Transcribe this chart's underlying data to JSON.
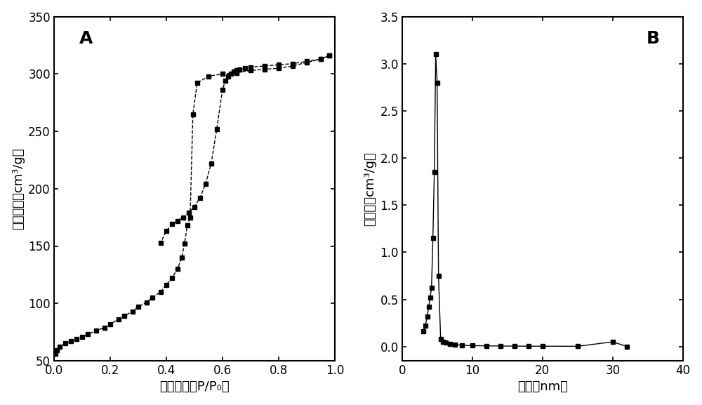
{
  "adsorption_x": [
    0.005,
    0.01,
    0.02,
    0.04,
    0.06,
    0.08,
    0.1,
    0.12,
    0.15,
    0.18,
    0.2,
    0.23,
    0.25,
    0.28,
    0.3,
    0.33,
    0.35,
    0.38,
    0.4,
    0.42,
    0.44,
    0.455,
    0.465,
    0.475,
    0.485,
    0.495,
    0.51,
    0.55,
    0.6,
    0.65,
    0.7,
    0.75,
    0.8,
    0.85,
    0.9,
    0.95,
    0.98
  ],
  "adsorption_y": [
    56,
    59,
    62,
    65,
    67,
    69,
    71,
    73,
    76,
    79,
    82,
    86,
    89,
    93,
    97,
    101,
    105,
    110,
    116,
    122,
    130,
    140,
    152,
    168,
    175,
    265,
    292,
    298,
    300,
    301,
    303,
    304,
    305,
    307,
    310,
    313,
    316
  ],
  "desorption_x": [
    0.98,
    0.95,
    0.9,
    0.85,
    0.8,
    0.75,
    0.7,
    0.68,
    0.66,
    0.65,
    0.64,
    0.63,
    0.62,
    0.61,
    0.6,
    0.58,
    0.56,
    0.54,
    0.52,
    0.5,
    0.48,
    0.46,
    0.44,
    0.42,
    0.4,
    0.38
  ],
  "desorption_y": [
    316,
    313,
    311,
    309,
    308,
    307,
    306,
    305,
    304,
    303,
    302,
    300,
    298,
    294,
    286,
    252,
    222,
    204,
    192,
    184,
    179,
    175,
    172,
    169,
    163,
    153
  ],
  "pore_x": [
    3.0,
    3.3,
    3.6,
    3.8,
    4.0,
    4.2,
    4.4,
    4.6,
    4.8,
    5.0,
    5.2,
    5.5,
    5.8,
    6.2,
    6.8,
    7.5,
    8.5,
    10.0,
    12.0,
    14.0,
    16.0,
    18.0,
    20.0,
    25.0,
    30.0,
    32.0
  ],
  "pore_y": [
    0.16,
    0.22,
    0.32,
    0.42,
    0.52,
    0.62,
    1.15,
    1.85,
    3.1,
    2.8,
    0.75,
    0.08,
    0.05,
    0.04,
    0.03,
    0.02,
    0.015,
    0.01,
    0.008,
    0.006,
    0.005,
    0.004,
    0.004,
    0.003,
    0.05,
    0.002
  ],
  "ylabel_A": "吸附体积（cm³/g）",
  "xlabel_A": "相对压力（P/P₀）",
  "ylabel_B": "孔体积（cm³/g）",
  "xlabel_B": "孔径（nm）",
  "ylabel_A_line1": "吸附体积",
  "ylabel_A_line2": "（cm³/g）",
  "ylabel_B_line1": "孔体积",
  "ylabel_B_line2": "（cm³/g）",
  "xlabel_A_text": "相对压力（P/P₀）",
  "xlabel_B_text": "孔径（nm）",
  "label_A": "A",
  "label_B": "B",
  "xlim_A": [
    0.0,
    1.0
  ],
  "ylim_A": [
    50,
    350
  ],
  "xlim_B": [
    0,
    40
  ],
  "ylim_B": [
    -0.15,
    3.5
  ],
  "xticks_A": [
    0.0,
    0.2,
    0.4,
    0.6,
    0.8,
    1.0
  ],
  "xticklabels_A": [
    "0.0",
    "0.2",
    "0.4",
    "0.6",
    "0.8",
    "1.0"
  ],
  "yticks_A": [
    50,
    100,
    150,
    200,
    250,
    300,
    350
  ],
  "yticklabels_A": [
    "50",
    "100",
    "150",
    "200",
    "250",
    "300",
    "350"
  ],
  "xticks_B": [
    0,
    10,
    20,
    30,
    40
  ],
  "xticklabels_B": [
    "0",
    "10",
    "20",
    "30",
    "40"
  ],
  "yticks_B": [
    0.0,
    0.5,
    1.0,
    1.5,
    2.0,
    2.5,
    3.0,
    3.5
  ],
  "yticklabels_B": [
    "0.0",
    "0.5",
    "1.0",
    "1.5",
    "2.0",
    "2.5",
    "3.0",
    "3.5"
  ],
  "color": "#000000",
  "marker": "s",
  "markersize": 5,
  "linewidth": 1.0,
  "bg_color": "#ffffff",
  "fig_width": 10.0,
  "fig_height": 5.77
}
